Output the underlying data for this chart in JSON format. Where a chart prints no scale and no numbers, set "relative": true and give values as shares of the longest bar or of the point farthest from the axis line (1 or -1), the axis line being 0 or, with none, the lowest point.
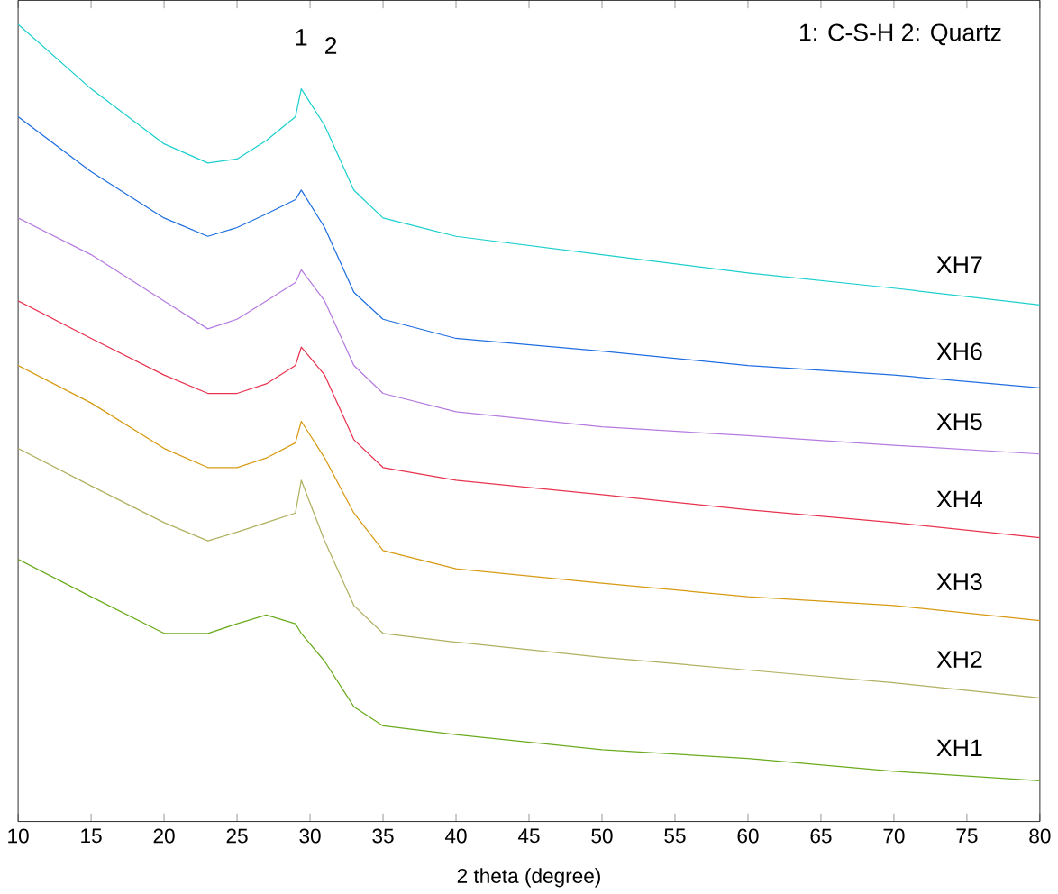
{
  "chart_data": {
    "type": "line",
    "xlabel": "2 theta (degree)",
    "relative": true,
    "xlim": [
      10,
      80
    ],
    "xticks": [
      10,
      15,
      20,
      25,
      30,
      35,
      40,
      45,
      50,
      55,
      60,
      65,
      70,
      75,
      80
    ],
    "grid": false,
    "marker": "none",
    "line_style": "solid",
    "x": [
      10,
      15,
      20,
      23,
      25,
      27,
      29,
      29.4,
      31,
      33,
      35,
      40,
      50,
      60,
      70,
      80
    ],
    "series": [
      {
        "name": "XH7",
        "color": "#1ccfcf",
        "values": [
          1.0,
          0.919,
          0.85,
          0.826,
          0.831,
          0.854,
          0.884,
          0.919,
          0.873,
          0.792,
          0.757,
          0.734,
          0.711,
          0.688,
          0.669,
          0.648
        ]
      },
      {
        "name": "XH6",
        "color": "#1f6fe0",
        "values": [
          0.884,
          0.815,
          0.757,
          0.734,
          0.745,
          0.762,
          0.78,
          0.792,
          0.745,
          0.664,
          0.63,
          0.606,
          0.59,
          0.572,
          0.56,
          0.544
        ]
      },
      {
        "name": "XH5",
        "color": "#b57be0",
        "values": [
          0.757,
          0.711,
          0.653,
          0.618,
          0.63,
          0.653,
          0.676,
          0.692,
          0.653,
          0.572,
          0.537,
          0.514,
          0.495,
          0.484,
          0.472,
          0.461
        ]
      },
      {
        "name": "XH4",
        "color": "#e8334e",
        "values": [
          0.653,
          0.606,
          0.56,
          0.537,
          0.537,
          0.549,
          0.572,
          0.595,
          0.56,
          0.479,
          0.444,
          0.428,
          0.41,
          0.391,
          0.375,
          0.356
        ]
      },
      {
        "name": "XH3",
        "color": "#d79a12",
        "values": [
          0.572,
          0.525,
          0.468,
          0.444,
          0.444,
          0.456,
          0.475,
          0.502,
          0.456,
          0.387,
          0.34,
          0.317,
          0.299,
          0.282,
          0.271,
          0.252
        ]
      },
      {
        "name": "XH2",
        "color": "#b0b060",
        "values": [
          0.468,
          0.421,
          0.375,
          0.352,
          0.363,
          0.375,
          0.387,
          0.428,
          0.352,
          0.271,
          0.236,
          0.225,
          0.206,
          0.19,
          0.174,
          0.155
        ]
      },
      {
        "name": "XH1",
        "color": "#6aab1e",
        "values": [
          0.329,
          0.282,
          0.236,
          0.236,
          0.248,
          0.259,
          0.248,
          0.236,
          0.201,
          0.144,
          0.12,
          0.109,
          0.09,
          0.079,
          0.063,
          0.051
        ]
      }
    ],
    "annotations": [
      "1",
      "2",
      "1: C-S-H   2: Quartz"
    ]
  }
}
